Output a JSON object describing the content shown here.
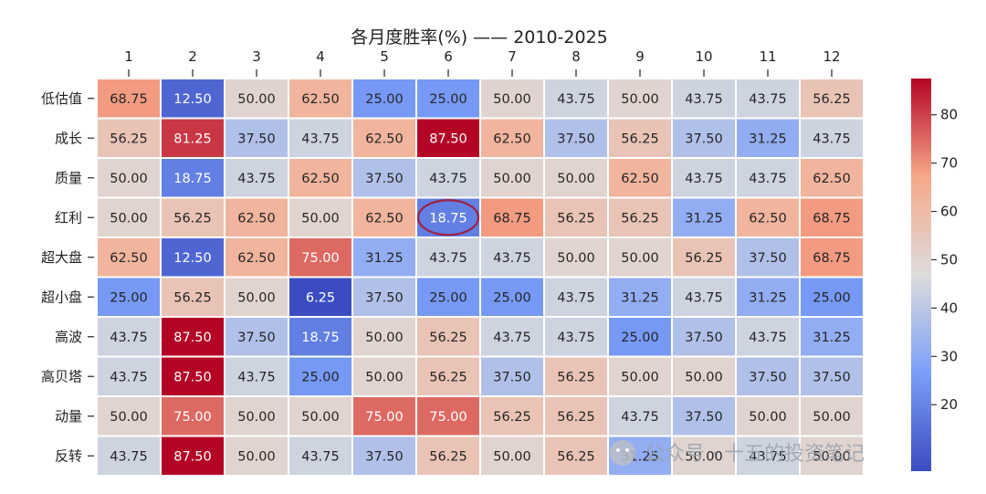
{
  "chart_data": {
    "type": "heatmap",
    "title": "各月度胜率(%) —— 2010-2025",
    "columns": [
      "1",
      "2",
      "3",
      "4",
      "5",
      "6",
      "7",
      "8",
      "9",
      "10",
      "11",
      "12"
    ],
    "rows": [
      "低估值",
      "成长",
      "质量",
      "红利",
      "超大盘",
      "超小盘",
      "高波",
      "高贝塔",
      "动量",
      "反转"
    ],
    "values": [
      [
        68.75,
        12.5,
        50.0,
        62.5,
        25.0,
        25.0,
        50.0,
        43.75,
        50.0,
        43.75,
        43.75,
        56.25
      ],
      [
        56.25,
        81.25,
        37.5,
        43.75,
        62.5,
        87.5,
        62.5,
        37.5,
        56.25,
        37.5,
        31.25,
        43.75
      ],
      [
        50.0,
        18.75,
        43.75,
        62.5,
        37.5,
        43.75,
        50.0,
        50.0,
        62.5,
        43.75,
        43.75,
        62.5
      ],
      [
        50.0,
        56.25,
        62.5,
        50.0,
        62.5,
        18.75,
        68.75,
        56.25,
        56.25,
        31.25,
        62.5,
        68.75
      ],
      [
        62.5,
        12.5,
        62.5,
        75.0,
        31.25,
        43.75,
        43.75,
        50.0,
        50.0,
        56.25,
        37.5,
        68.75
      ],
      [
        25.0,
        56.25,
        50.0,
        6.25,
        37.5,
        25.0,
        25.0,
        43.75,
        31.25,
        43.75,
        31.25,
        25.0
      ],
      [
        43.75,
        87.5,
        37.5,
        18.75,
        50.0,
        56.25,
        43.75,
        43.75,
        25.0,
        37.5,
        43.75,
        31.25
      ],
      [
        43.75,
        87.5,
        43.75,
        25.0,
        50.0,
        56.25,
        37.5,
        56.25,
        50.0,
        50.0,
        37.5,
        37.5
      ],
      [
        50.0,
        75.0,
        50.0,
        50.0,
        75.0,
        75.0,
        56.25,
        56.25,
        43.75,
        37.5,
        50.0,
        50.0
      ],
      [
        43.75,
        87.5,
        50.0,
        43.75,
        37.5,
        56.25,
        50.0,
        56.25,
        31.25,
        50.0,
        43.75,
        50.0
      ]
    ],
    "value_range": [
      6.25,
      87.5
    ],
    "colormap": "coolwarm",
    "colorbar_ticks": [
      20,
      30,
      40,
      50,
      60,
      70,
      80
    ],
    "highlight": {
      "row": 3,
      "col": 5,
      "color": "#9c2244"
    }
  },
  "watermark": "公众号 · 十五的投资笔记"
}
